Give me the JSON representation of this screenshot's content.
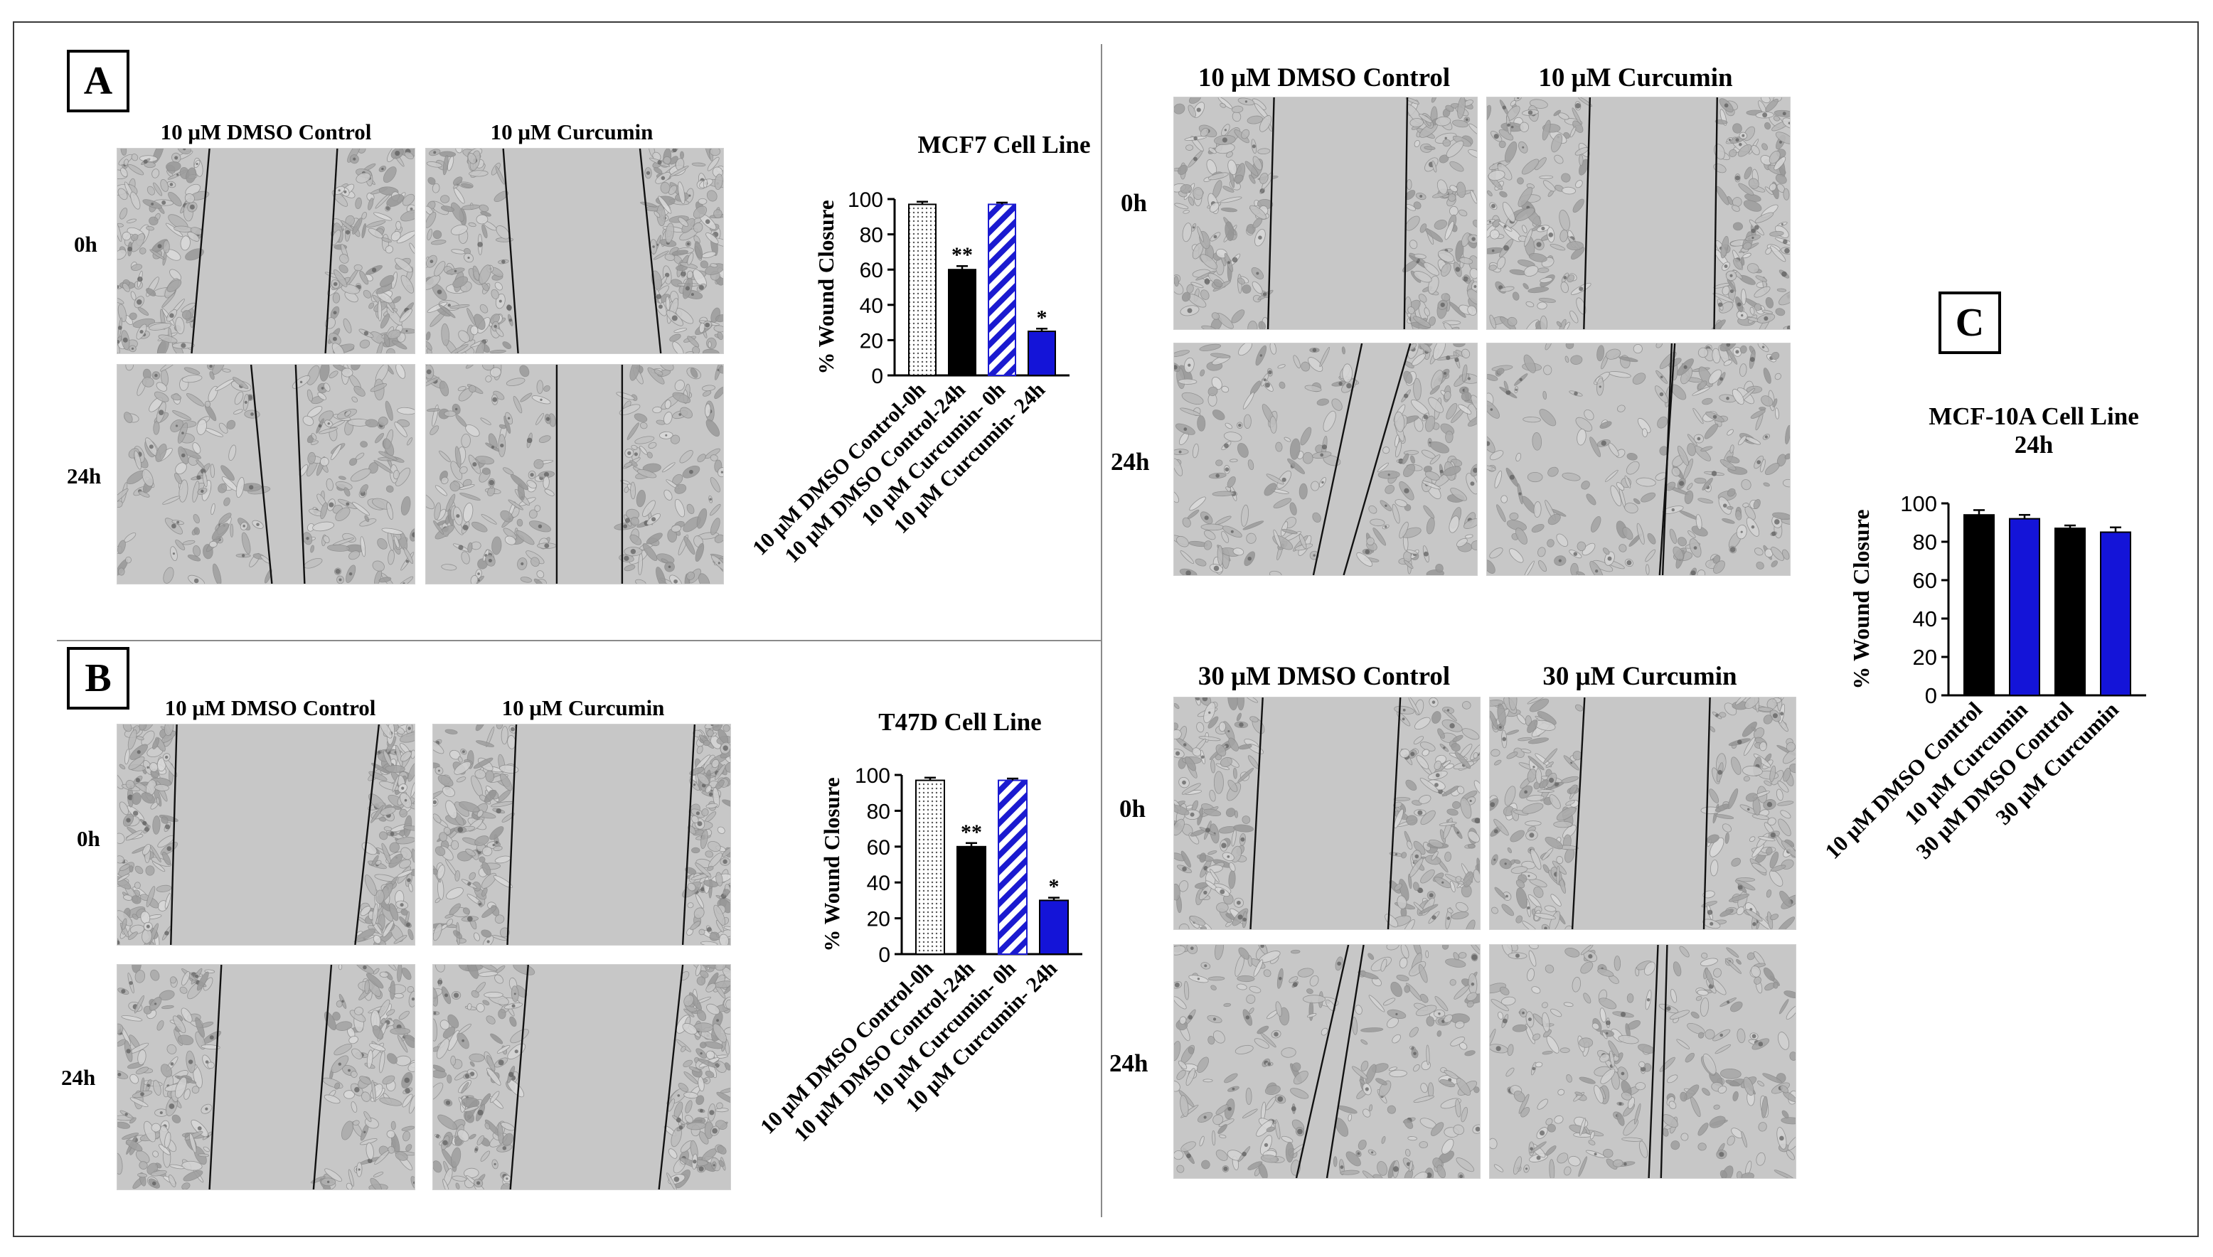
{
  "panel_labels": {
    "a": "A",
    "b": "B",
    "c": "C"
  },
  "panel_a": {
    "columns": [
      "10 μM DMSO Control",
      "10 μM Curcumin"
    ],
    "rows": [
      "0h",
      "24h"
    ]
  },
  "panel_b": {
    "columns": [
      "10 μM DMSO Control",
      "10 μM Curcumin"
    ],
    "rows": [
      "0h",
      "24h"
    ]
  },
  "panel_c_top": {
    "columns": [
      "10 μM DMSO Control",
      "10 μM Curcumin"
    ],
    "rows": [
      "0h",
      "24h"
    ]
  },
  "panel_c_bottom": {
    "columns": [
      "30 μM DMSO Control",
      "30 μM Curcumin"
    ],
    "rows": [
      "0h",
      "24h"
    ]
  },
  "colors": {
    "black": "#000000",
    "blue": "#1414d8",
    "hatch_blue": "#1a1ad0",
    "grey_light": "#d6d6d6",
    "field": "#c4c4c4"
  },
  "chart_data": [
    {
      "type": "bar",
      "title": "MCF7 Cell Line",
      "ylabel": "% Wound Closure",
      "xlabel": "",
      "ylim": [
        0,
        100
      ],
      "yticks": [
        "0",
        "20",
        "40",
        "60",
        "80",
        "100"
      ],
      "categories": [
        "10 μM DMSO Control-0h",
        "10 μM DMSO Control-24h",
        "10 μM Curcumin- 0h",
        "10 μM Curcumin- 24h"
      ],
      "values": [
        97,
        60,
        97,
        25
      ],
      "errors": [
        1.5,
        2,
        1,
        1.5
      ],
      "fills": [
        "dots",
        "black",
        "hatch",
        "blue"
      ],
      "significance": [
        "",
        "**",
        "",
        "*"
      ]
    },
    {
      "type": "bar",
      "title": "T47D Cell Line",
      "ylabel": "% Wound Closure",
      "xlabel": "",
      "ylim": [
        0,
        100
      ],
      "yticks": [
        "0",
        "20",
        "40",
        "60",
        "80",
        "100"
      ],
      "categories": [
        "10 μM DMSO Control-0h",
        "10 μM DMSO Control-24h",
        "10 μM Curcumin- 0h",
        "10 μM Curcumin- 24h"
      ],
      "values": [
        97,
        60,
        97,
        30
      ],
      "errors": [
        1.5,
        2,
        1,
        1.5
      ],
      "fills": [
        "dots",
        "black",
        "hatch",
        "blue"
      ],
      "significance": [
        "",
        "**",
        "",
        "*"
      ]
    },
    {
      "type": "bar",
      "title": "MCF-10A Cell Line",
      "subtitle": "24h",
      "ylabel": "% Wound Closure",
      "xlabel": "",
      "ylim": [
        0,
        100
      ],
      "yticks": [
        "0",
        "20",
        "40",
        "60",
        "80",
        "100"
      ],
      "categories": [
        "10 μM DMSO Control",
        "10 μM Curcumin",
        "30 μM DMSO Control",
        "30 μM Curcumin"
      ],
      "values": [
        94,
        92,
        87,
        85
      ],
      "errors": [
        2.5,
        2,
        1.5,
        2.5
      ],
      "fills": [
        "black",
        "blue",
        "black",
        "blue"
      ],
      "significance": [
        "",
        "",
        "",
        ""
      ]
    }
  ]
}
